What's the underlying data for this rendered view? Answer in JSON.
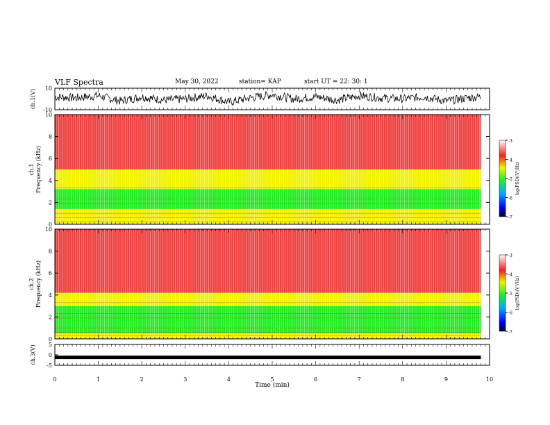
{
  "header": {
    "title": "VLF Spectra",
    "date": "May 30, 2022",
    "station": "station= KAP",
    "start": "start  UT  =   22: 30: 1"
  },
  "colors": {
    "spec_red": "#ee2222",
    "spec_yellow": "#f2f200",
    "spec_green": "#22ee22",
    "trace": "#000000"
  },
  "chart_data": [
    {
      "type": "line",
      "name": "ch1-waveform",
      "ylabel": "ch.1(V)",
      "ylim": [
        -10,
        10
      ],
      "yticklabels": [
        "10",
        "-10"
      ],
      "xlim": [
        0,
        10
      ],
      "x": [
        0,
        0.5,
        1,
        1.5,
        2,
        2.5,
        3,
        3.5,
        4,
        4.5,
        5,
        5.5,
        6,
        6.5,
        7,
        7.5,
        8,
        8.5,
        9,
        9.5,
        9.8
      ],
      "y": [
        2,
        1,
        3,
        -2,
        2,
        -1,
        0,
        3,
        -3,
        1,
        4,
        0,
        2,
        -1,
        3,
        1,
        0,
        2,
        -2,
        1,
        2
      ]
    },
    {
      "type": "heatmap",
      "name": "ch1-spectrogram",
      "ylabel": "ch.1\nFrequency (kHz)",
      "ylim": [
        0,
        10
      ],
      "yticks": [
        0,
        2,
        4,
        6,
        8,
        10
      ],
      "xlim": [
        0,
        10
      ],
      "time_end_min": 9.8,
      "bands_khz": [
        {
          "from": 0,
          "to": 0.5,
          "level": -4.2
        },
        {
          "from": 0.5,
          "to": 1.4,
          "level": -4.4
        },
        {
          "from": 1.4,
          "to": 3.2,
          "level": -5.0
        },
        {
          "from": 3.2,
          "to": 5.0,
          "level": -4.3
        },
        {
          "from": 5.0,
          "to": 10,
          "level": -3.6
        }
      ],
      "colorbar": {
        "label": "log(PSD)(V²/Hz)",
        "range": [
          -7,
          -3
        ],
        "ticks": [
          "-3",
          "-4",
          "-5",
          "-6",
          "-7"
        ]
      }
    },
    {
      "type": "heatmap",
      "name": "ch2-spectrogram",
      "ylabel": "ch.2\nFrequency (kHz)",
      "ylim": [
        0,
        10
      ],
      "yticks": [
        0,
        2,
        4,
        6,
        8,
        10
      ],
      "xlim": [
        0,
        10
      ],
      "time_end_min": 9.8,
      "bands_khz": [
        {
          "from": 0,
          "to": 0.5,
          "level": -4.3
        },
        {
          "from": 0.5,
          "to": 3.0,
          "level": -4.6
        },
        {
          "from": 3.0,
          "to": 4.2,
          "level": -3.9
        },
        {
          "from": 4.2,
          "to": 10,
          "level": -3.3
        }
      ],
      "colorbar": {
        "label": "log(PSD)(V²/Hz)",
        "range": [
          -7,
          -3
        ],
        "ticks": [
          "-3",
          "-4",
          "-5",
          "-6",
          "-7"
        ]
      }
    },
    {
      "type": "line",
      "name": "ch3-waveform",
      "ylabel": "ch.3(V)",
      "ylim": [
        -5,
        5
      ],
      "yticklabels": [
        "5",
        "0",
        "-5"
      ],
      "xlim": [
        0,
        10
      ],
      "x": [
        0,
        9.8
      ],
      "y": [
        -1.2,
        -1.2
      ]
    }
  ],
  "xaxis": {
    "label": "Time  (min)",
    "ticks": [
      "0",
      "1",
      "2",
      "3",
      "4",
      "5",
      "6",
      "7",
      "8",
      "9",
      "10"
    ]
  },
  "colorbar_label": "log(PSD)(V²/Hz)"
}
